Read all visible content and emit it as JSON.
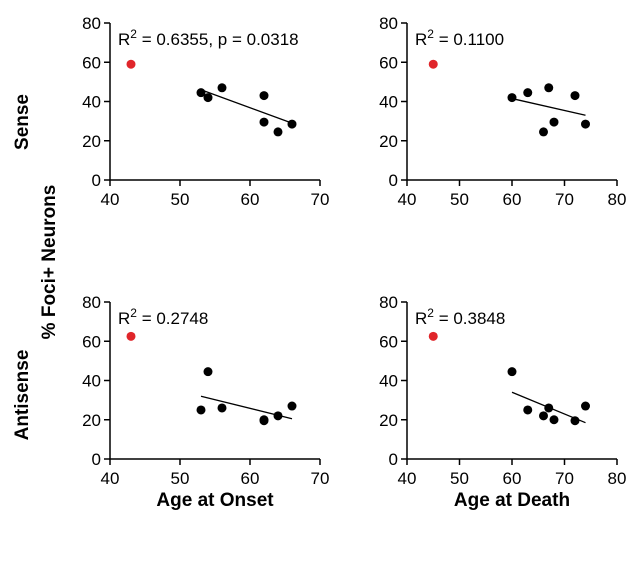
{
  "figure": {
    "row_titles": [
      "Sense",
      "Antisense"
    ],
    "shared_ylabel": "% Foci+ Neurons",
    "colors": {
      "point": "#000000",
      "outlier": "#e0252a",
      "line": "#000000"
    }
  },
  "chart_data": [
    {
      "type": "scatter",
      "row": "Sense",
      "xlabel": "",
      "ylabel": "",
      "xlim": [
        40,
        70
      ],
      "xticks": [
        "40",
        "50",
        "60",
        "70"
      ],
      "ylim": [
        0,
        80
      ],
      "yticks": [
        "0",
        "20",
        "40",
        "60",
        "80"
      ],
      "r2_label": "R",
      "r2_text": " = 0.6355, p = 0.0318",
      "points": [
        [
          53,
          44.5
        ],
        [
          54,
          42
        ],
        [
          56,
          47
        ],
        [
          62,
          43
        ],
        [
          62,
          29.5
        ],
        [
          64,
          24.5
        ],
        [
          66,
          28.5
        ]
      ],
      "outlier": [
        43,
        59
      ],
      "fit_line": [
        [
          53,
          46
        ],
        [
          66,
          29
        ]
      ]
    },
    {
      "type": "scatter",
      "row": "Sense",
      "xlabel": "",
      "ylabel": "",
      "xlim": [
        40,
        80
      ],
      "xticks": [
        "40",
        "50",
        "60",
        "70",
        "80"
      ],
      "ylim": [
        0,
        80
      ],
      "yticks": [
        "0",
        "20",
        "40",
        "60",
        "80"
      ],
      "r2_label": "R",
      "r2_text": " = 0.1100",
      "points": [
        [
          60,
          42
        ],
        [
          63,
          44.5
        ],
        [
          66,
          24.5
        ],
        [
          67,
          47
        ],
        [
          68,
          29.5
        ],
        [
          72,
          43
        ],
        [
          74,
          28.5
        ]
      ],
      "outlier": [
        45,
        59
      ],
      "fit_line": [
        [
          60,
          41.5
        ],
        [
          74,
          33
        ]
      ]
    },
    {
      "type": "scatter",
      "row": "Antisense",
      "xlabel": "Age at Onset",
      "ylabel": "",
      "xlim": [
        40,
        70
      ],
      "xticks": [
        "40",
        "50",
        "60",
        "70"
      ],
      "ylim": [
        0,
        80
      ],
      "yticks": [
        "0",
        "20",
        "40",
        "60",
        "80"
      ],
      "r2_label": "R",
      "r2_text": " = 0.2748",
      "points": [
        [
          53,
          25
        ],
        [
          54,
          44.5
        ],
        [
          56,
          26
        ],
        [
          62,
          20
        ],
        [
          62,
          19.5
        ],
        [
          64,
          22
        ],
        [
          66,
          27
        ]
      ],
      "outlier": [
        43,
        62.5
      ],
      "fit_line": [
        [
          53,
          32
        ],
        [
          66,
          20.5
        ]
      ]
    },
    {
      "type": "scatter",
      "row": "Antisense",
      "xlabel": "Age at Death",
      "ylabel": "",
      "xlim": [
        40,
        80
      ],
      "xticks": [
        "40",
        "50",
        "60",
        "70",
        "80"
      ],
      "ylim": [
        0,
        80
      ],
      "yticks": [
        "0",
        "20",
        "40",
        "60",
        "80"
      ],
      "r2_label": "R",
      "r2_text": " = 0.3848",
      "points": [
        [
          60,
          44.5
        ],
        [
          63,
          25
        ],
        [
          66,
          22
        ],
        [
          67,
          26
        ],
        [
          68,
          20
        ],
        [
          72,
          19.5
        ],
        [
          74,
          27
        ]
      ],
      "outlier": [
        45,
        62.5
      ],
      "fit_line": [
        [
          60,
          34
        ],
        [
          74,
          18.5
        ]
      ]
    }
  ]
}
